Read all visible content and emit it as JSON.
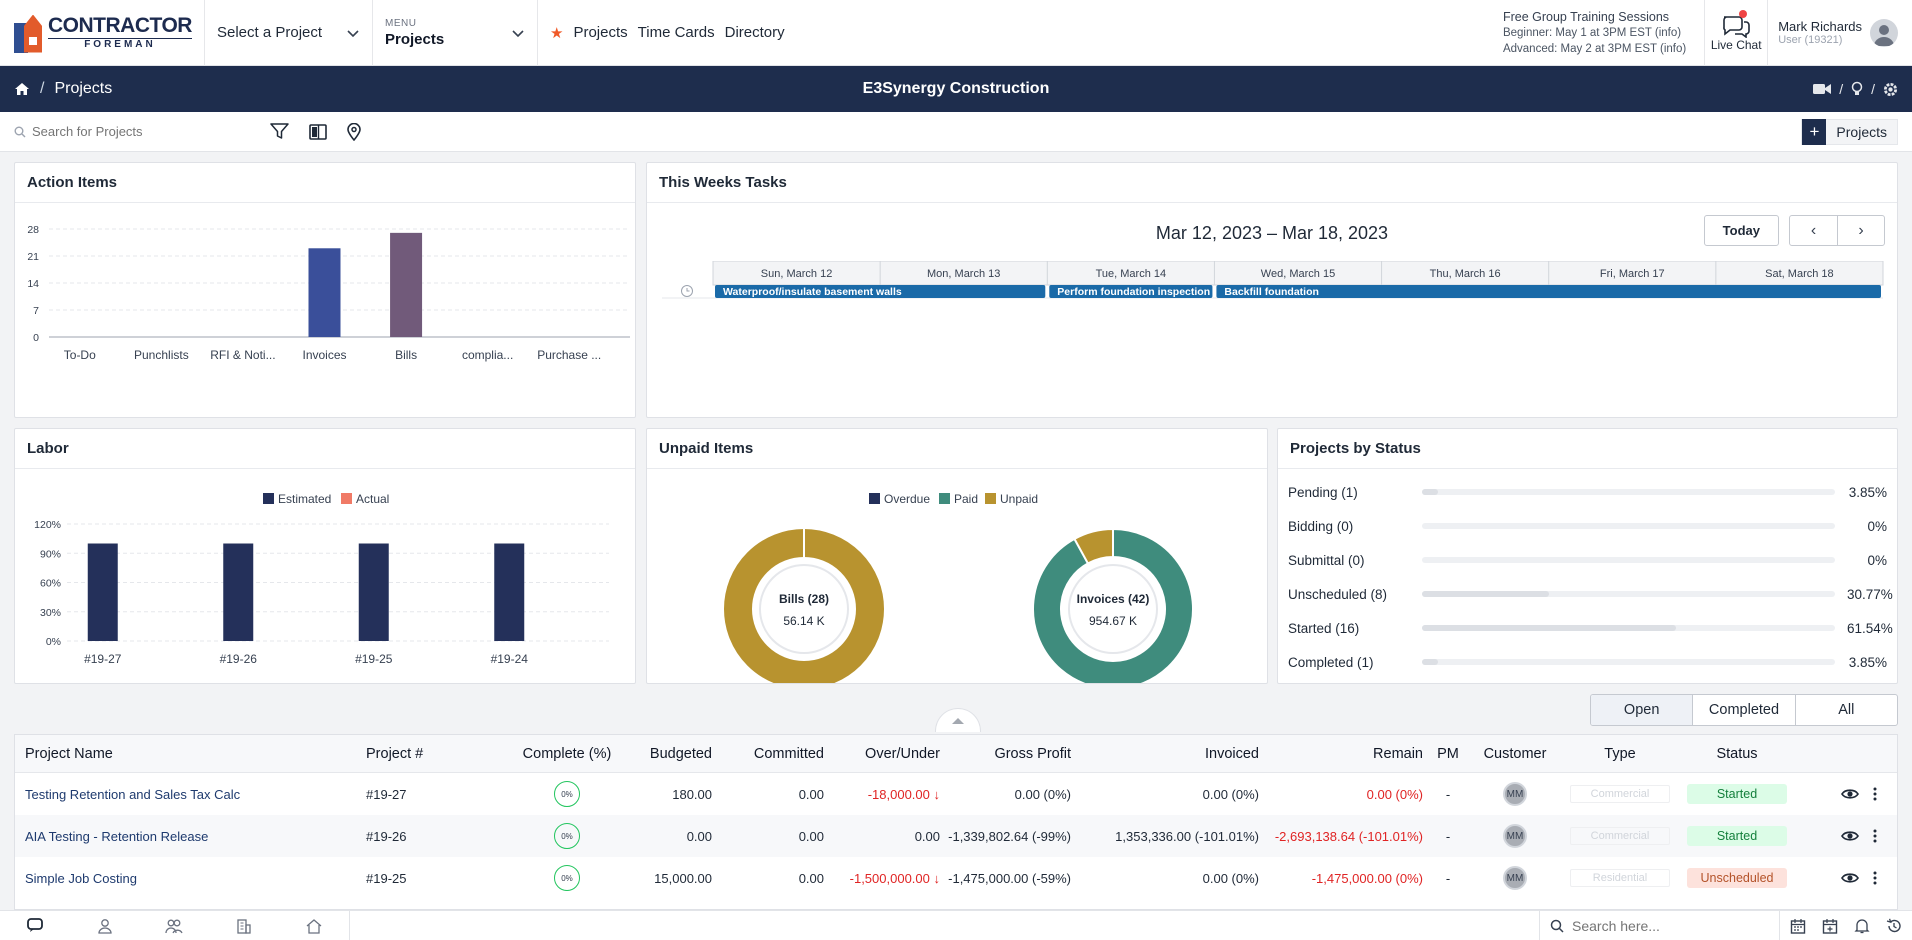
{
  "header": {
    "logo_top": "CONTRACTOR",
    "logo_bottom": "FOREMAN",
    "project_selector": "Select a Project",
    "menu_small": "MENU",
    "menu_value": "Projects",
    "quick_links": [
      "Projects",
      "Time Cards",
      "Directory"
    ],
    "training_title": "Free Group Training Sessions",
    "training_beginner": "Beginner: May 1 at 3PM EST (info)",
    "training_advanced": "Advanced: May 2 at 3PM EST (info)",
    "live_chat": "Live Chat",
    "user_name": "Mark Richards",
    "user_id": "User (19321)"
  },
  "nav": {
    "breadcrumb_sep": "/",
    "breadcrumb": "Projects",
    "company": "E3Synergy Construction",
    "icon_sep": "/"
  },
  "search": {
    "placeholder": "Search for Projects",
    "add_label": "Projects",
    "add_plus": "+"
  },
  "action_items": {
    "title": "Action Items",
    "chart_data": {
      "type": "bar",
      "categories": [
        "To-Do",
        "Punchlists",
        "RFI & Noti...",
        "Invoices",
        "Bills",
        "complia...",
        "Purchase ..."
      ],
      "values": [
        0,
        0,
        0,
        23,
        27,
        0,
        0
      ],
      "colors": [
        "#3a4f9a",
        "#3a4f9a",
        "#3a4f9a",
        "#3a4f9a",
        "#715a7a",
        "#3a4f9a",
        "#3a4f9a"
      ],
      "yticks": [
        0,
        7,
        14,
        21,
        28
      ],
      "ylim": [
        0,
        28
      ]
    }
  },
  "tasks": {
    "title": "This Weeks Tasks",
    "range": "Mar 12, 2023 – Mar 18, 2023",
    "today": "Today",
    "prev": "‹",
    "next": "›",
    "days": [
      "Sun, March 12",
      "Mon, March 13",
      "Tue, March 14",
      "Wed, March 15",
      "Thu, March 16",
      "Fri, March 17",
      "Sat, March 18"
    ],
    "events": [
      {
        "label": "Waterproof/insulate basement walls",
        "start_day": 0,
        "span_days": 2
      },
      {
        "label": "Perform foundation inspection",
        "start_day": 2,
        "span_days": 1
      },
      {
        "label": "Backfill foundation",
        "start_day": 3,
        "span_days": 4
      }
    ]
  },
  "labor": {
    "title": "Labor",
    "chart_data": {
      "type": "bar",
      "categories": [
        "#19-27",
        "#19-26",
        "#19-25",
        "#19-24"
      ],
      "series": [
        {
          "name": "Estimated",
          "color": "#24305a",
          "values": [
            100,
            100,
            100,
            100
          ]
        },
        {
          "name": "Actual",
          "color": "#f07a66",
          "values": [
            0,
            0,
            0,
            0
          ]
        }
      ],
      "yticks": [
        "0%",
        "30%",
        "60%",
        "90%",
        "120%"
      ],
      "ylim": [
        0,
        120
      ]
    }
  },
  "unpaid": {
    "title": "Unpaid Items",
    "chart_data": {
      "type": "pie",
      "legend": [
        {
          "name": "Overdue",
          "color": "#24305a"
        },
        {
          "name": "Paid",
          "color": "#3f8c7d"
        },
        {
          "name": "Unpaid",
          "color": "#b8932f"
        }
      ],
      "donuts": [
        {
          "label": "Bills (28)",
          "value": "56.14 K",
          "slices": [
            {
              "name": "Overdue",
              "value": 0
            },
            {
              "name": "Paid",
              "value": 0
            },
            {
              "name": "Unpaid",
              "value": 100
            }
          ]
        },
        {
          "label": "Invoices (42)",
          "value": "954.67 K",
          "slices": [
            {
              "name": "Overdue",
              "value": 0
            },
            {
              "name": "Paid",
              "value": 92
            },
            {
              "name": "Unpaid",
              "value": 8
            }
          ]
        }
      ]
    }
  },
  "status": {
    "title": "Projects by Status",
    "rows": [
      {
        "label": "Pending (1)",
        "pct": "3.85%",
        "value": 3.85
      },
      {
        "label": "Bidding (0)",
        "pct": "0%",
        "value": 0
      },
      {
        "label": "Submittal (0)",
        "pct": "0%",
        "value": 0
      },
      {
        "label": "Unscheduled (8)",
        "pct": "30.77%",
        "value": 30.77
      },
      {
        "label": "Started (16)",
        "pct": "61.54%",
        "value": 61.54
      },
      {
        "label": "Completed (1)",
        "pct": "3.85%",
        "value": 3.85
      }
    ]
  },
  "filter_tabs": [
    "Open",
    "Completed",
    "All"
  ],
  "table": {
    "headers": [
      "Project Name",
      "Project #",
      "Complete (%)",
      "Budgeted",
      "Committed",
      "Over/Under",
      "Gross Profit",
      "Invoiced",
      "Remain",
      "PM",
      "Customer",
      "Type",
      "Status"
    ],
    "rows": [
      {
        "name": "Testing Retention and Sales Tax Calc",
        "num": "#19-27",
        "complete": "0%",
        "budgeted": "180.00",
        "committed": "0.00",
        "over_under": "-18,000.00 ↓",
        "over_neg": true,
        "gross": "0.00 (0%)",
        "invoiced": "0.00 (0%)",
        "remain": "0.00 (0%)",
        "pm": "-",
        "customer": "MM",
        "type": "Commercial",
        "status": "Started"
      },
      {
        "name": "AIA Testing - Retention Release",
        "num": "#19-26",
        "complete": "0%",
        "budgeted": "0.00",
        "committed": "0.00",
        "over_under": "0.00",
        "over_neg": false,
        "gross": "-1,339,802.64 (-99%)",
        "invoiced": "1,353,336.00 (-101.01%)",
        "remain": "-2,693,138.64 (-101.01%)",
        "pm": "-",
        "customer": "MM",
        "type": "Commercial",
        "status": "Started"
      },
      {
        "name": "Simple Job Costing",
        "num": "#19-25",
        "complete": "0%",
        "budgeted": "15,000.00",
        "committed": "0.00",
        "over_under": "-1,500,000.00 ↓",
        "over_neg": true,
        "gross": "-1,475,000.00 (-59%)",
        "invoiced": "0.00 (0%)",
        "remain": "-1,475,000.00 (0%)",
        "pm": "-",
        "customer": "MM",
        "type": "Residential",
        "status": "Unscheduled"
      }
    ]
  },
  "bottom": {
    "search_placeholder": "Search here..."
  },
  "colors": {
    "navy": "#1e2d4d",
    "accent_orange": "#f05a28",
    "event_blue": "#1a6aa8"
  }
}
